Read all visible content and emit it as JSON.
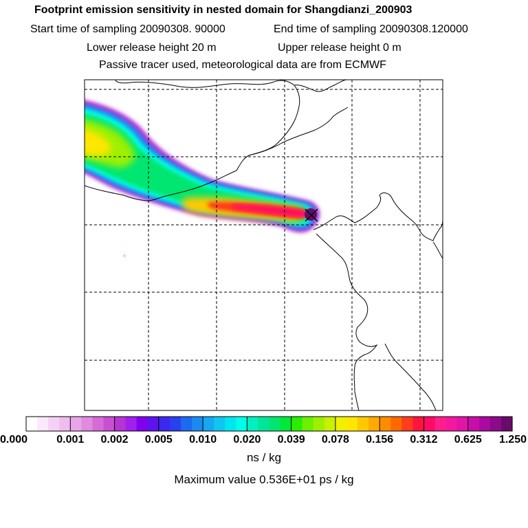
{
  "header": {
    "title": "Footprint emission sensitivity in nested domain for Shangdianzi_200903",
    "start_time": "Start time of sampling 20090308. 90000",
    "end_time": "End time of sampling 20090308.120000",
    "lower_height": "Lower release height   20 m",
    "upper_height": "Upper release height    0 m",
    "tracer_info": "Passive tracer used, meteorological data are from ECMWF"
  },
  "chart_data": {
    "type": "heatmap",
    "title": "Footprint emission sensitivity in nested domain for Shangdianzi_200903",
    "subtitle": "Passive tracer used, meteorological data are from ECMWF",
    "grid": true,
    "receptor_marker": "x",
    "colorbar": {
      "unit_label": "ns / kg",
      "tick_labels": [
        "0.000",
        "0.001",
        "0.002",
        "0.005",
        "0.010",
        "0.020",
        "0.039",
        "0.078",
        "0.156",
        "0.312",
        "0.625",
        "1.250"
      ],
      "colors": [
        "#ffffff",
        "#fbe8fb",
        "#f5d2f5",
        "#efbcef",
        "#e8a6e8",
        "#e08ae0",
        "#d66bd6",
        "#c84fd2",
        "#b634d4",
        "#a020ee",
        "#8000ee",
        "#5c14ee",
        "#3c28ee",
        "#2840ee",
        "#1b6aef",
        "#1a8af0",
        "#15a8f0",
        "#10c6f0",
        "#00e6f0",
        "#00ffe8",
        "#00f0c0",
        "#00e699",
        "#00e670",
        "#00e83a",
        "#28ee00",
        "#6cf000",
        "#9cf000",
        "#c8f000",
        "#f0f000",
        "#ffe600",
        "#ffc800",
        "#ffaa00",
        "#ff8c00",
        "#ff6a00",
        "#ff3c1e",
        "#ff143c",
        "#ff0a64",
        "#ff1e8c",
        "#f5189e",
        "#e014a8",
        "#c80ea8",
        "#aa0aa0",
        "#8c0a8c",
        "#6a0a6a"
      ]
    },
    "max_value": "Maximum value  0.536E+01 ps / kg"
  }
}
